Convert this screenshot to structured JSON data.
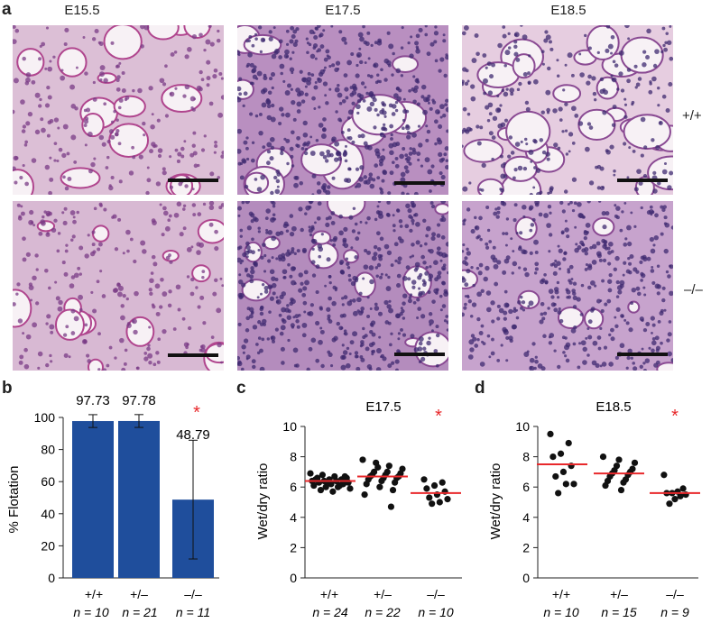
{
  "panel_a": {
    "letter": "a",
    "columns": [
      "E15.5",
      "E17.5",
      "E18.5"
    ],
    "rows": [
      "+/+",
      "–/–"
    ]
  },
  "panel_b": {
    "letter": "b",
    "ylabel": "% Flotation",
    "yticks": [
      "0",
      "20",
      "40",
      "60",
      "80",
      "100"
    ],
    "genotypes": [
      "+/+",
      "+/–",
      "–/–"
    ],
    "n_labels": [
      "n = 10",
      "n = 21",
      "n = 11"
    ],
    "star": "*"
  },
  "panel_c": {
    "letter": "c",
    "title": "E17.5",
    "ylabel": "Wet/dry ratio",
    "yticks": [
      "0",
      "2",
      "4",
      "6",
      "8",
      "10"
    ],
    "genotypes": [
      "+/+",
      "+/–",
      "–/–"
    ],
    "n_labels": [
      "n = 24",
      "n = 22",
      "n = 10"
    ],
    "star": "*"
  },
  "panel_d": {
    "letter": "d",
    "title": "E18.5",
    "ylabel": "Wet/dry ratio",
    "yticks": [
      "0",
      "2",
      "4",
      "6",
      "8",
      "10"
    ],
    "genotypes": [
      "+/+",
      "+/–",
      "–/–"
    ],
    "n_labels": [
      "n = 10",
      "n = 15",
      "n = 9"
    ],
    "star": "*"
  },
  "colors": {
    "bar": "#1f4e9c",
    "mean_line": "#e8282b",
    "star": "#e8282b",
    "dots": "#111111"
  },
  "chart_data": [
    {
      "type": "bar",
      "categories": [
        "+/+",
        "+/–",
        "–/–"
      ],
      "values": [
        97.73,
        97.78,
        48.79
      ],
      "value_labels": [
        "97.73",
        "97.78",
        "48.79"
      ],
      "error": [
        4,
        4,
        37
      ],
      "ylabel": "% Flotation",
      "ylim": [
        0,
        100
      ]
    },
    {
      "type": "scatter",
      "title": "E17.5",
      "ylabel": "Wet/dry ratio",
      "ylim": [
        0,
        10
      ],
      "categories": [
        "+/+",
        "+/–",
        "–/–"
      ],
      "means": [
        6.4,
        6.7,
        5.6
      ],
      "points": [
        [
          6.9,
          6.8,
          6.7,
          6.6,
          6.6,
          6.5,
          6.5,
          6.4,
          6.4,
          6.4,
          6.3,
          6.3,
          6.2,
          6.2,
          6.1,
          6.0,
          6.0,
          5.9,
          5.8,
          5.7,
          6.7,
          6.5,
          6.3,
          6.1
        ],
        [
          7.8,
          7.6,
          7.4,
          7.2,
          7.0,
          7.0,
          6.9,
          6.8,
          6.8,
          6.7,
          6.7,
          6.6,
          6.6,
          6.5,
          6.4,
          6.3,
          6.2,
          6.0,
          5.8,
          5.5,
          7.3,
          4.7
        ],
        [
          6.5,
          6.3,
          6.1,
          5.9,
          5.7,
          5.5,
          5.3,
          5.2,
          5.0,
          4.9
        ]
      ]
    },
    {
      "type": "scatter",
      "title": "E18.5",
      "ylabel": "Wet/dry ratio",
      "ylim": [
        0,
        10
      ],
      "categories": [
        "+/+",
        "+/–",
        "–/–"
      ],
      "means": [
        7.5,
        6.9,
        5.6
      ],
      "points": [
        [
          9.5,
          8.9,
          8.2,
          8.0,
          7.4,
          7.0,
          6.7,
          6.2,
          6.2,
          5.6
        ],
        [
          8.0,
          7.8,
          7.6,
          7.4,
          7.2,
          7.1,
          7.0,
          6.9,
          6.8,
          6.7,
          6.5,
          6.4,
          6.3,
          6.1,
          5.8
        ],
        [
          6.8,
          5.9,
          5.7,
          5.6,
          5.6,
          5.5,
          5.4,
          5.2,
          4.9
        ]
      ]
    }
  ]
}
